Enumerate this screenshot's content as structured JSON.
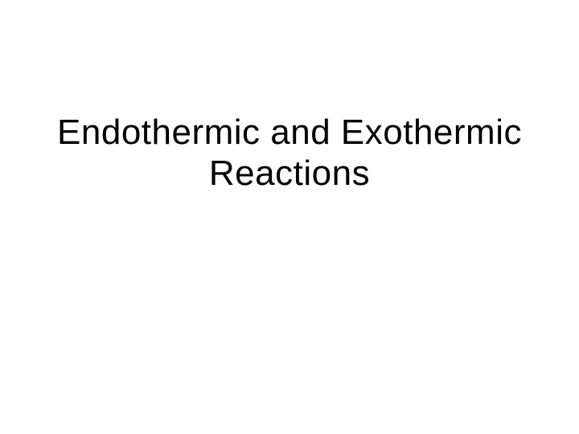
{
  "slide": {
    "title": "Endothermic and Exothermic Reactions",
    "background_color": "#ffffff",
    "title_color": "#000000",
    "title_fontsize": 44,
    "title_fontweight": 400
  }
}
